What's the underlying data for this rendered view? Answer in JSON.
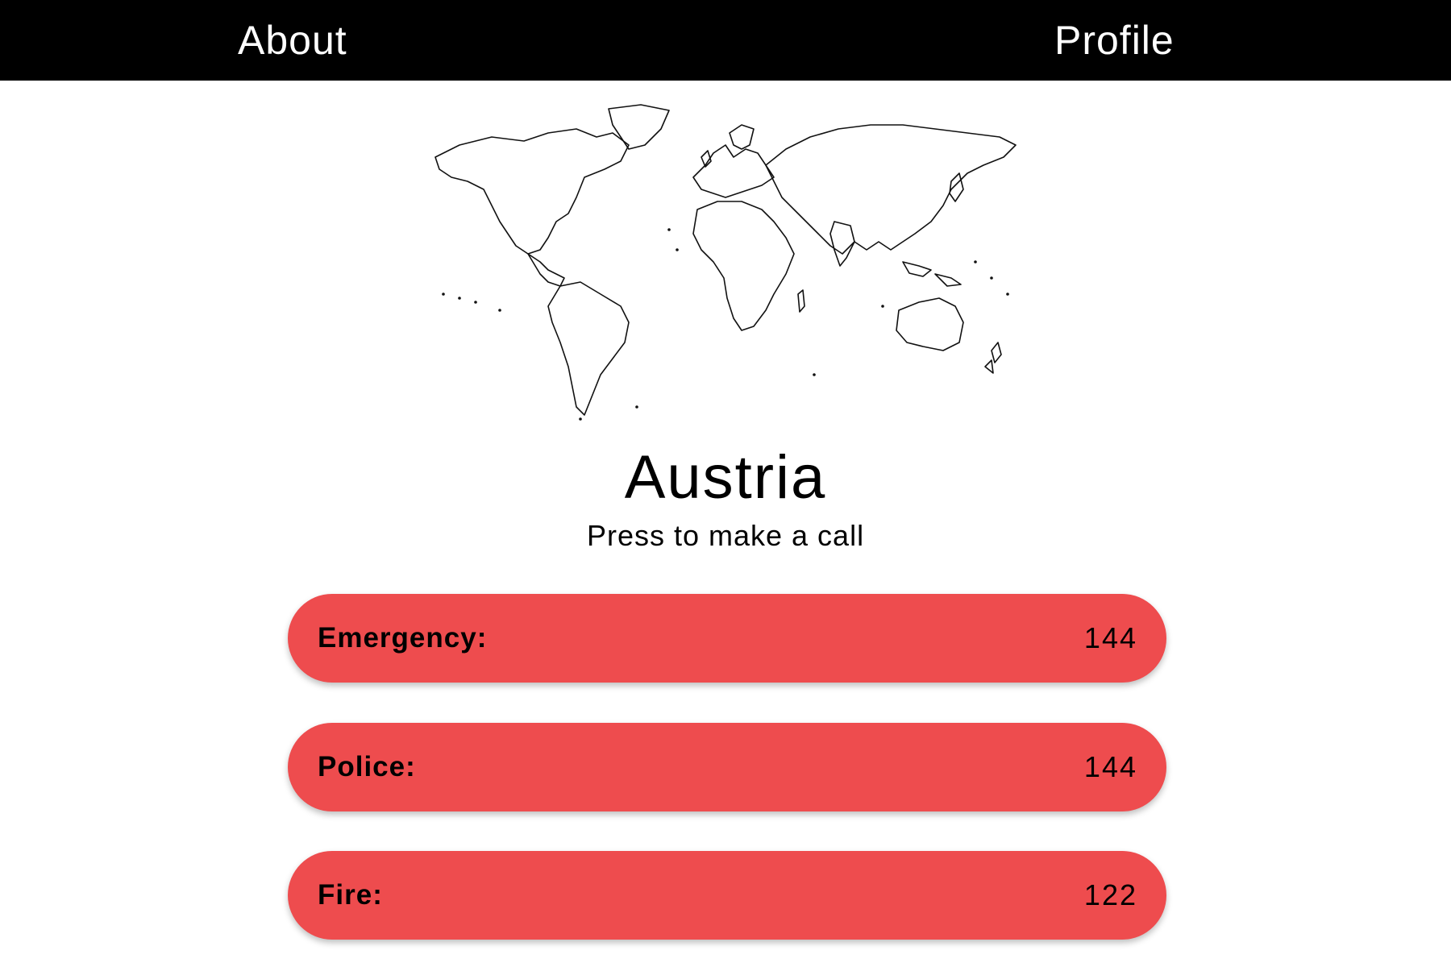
{
  "nav": {
    "about_label": "About",
    "profile_label": "Profile"
  },
  "map": {
    "icon": "world-map-outline"
  },
  "country": {
    "name": "Austria",
    "instruction": "Press to make a call"
  },
  "calls": [
    {
      "label": "Emergency:",
      "number": "144"
    },
    {
      "label": "Police:",
      "number": "144"
    },
    {
      "label": "Fire:",
      "number": "122"
    }
  ],
  "colors": {
    "topbar": "#000000",
    "button": "#ee4c4e",
    "background": "#ffffff"
  }
}
